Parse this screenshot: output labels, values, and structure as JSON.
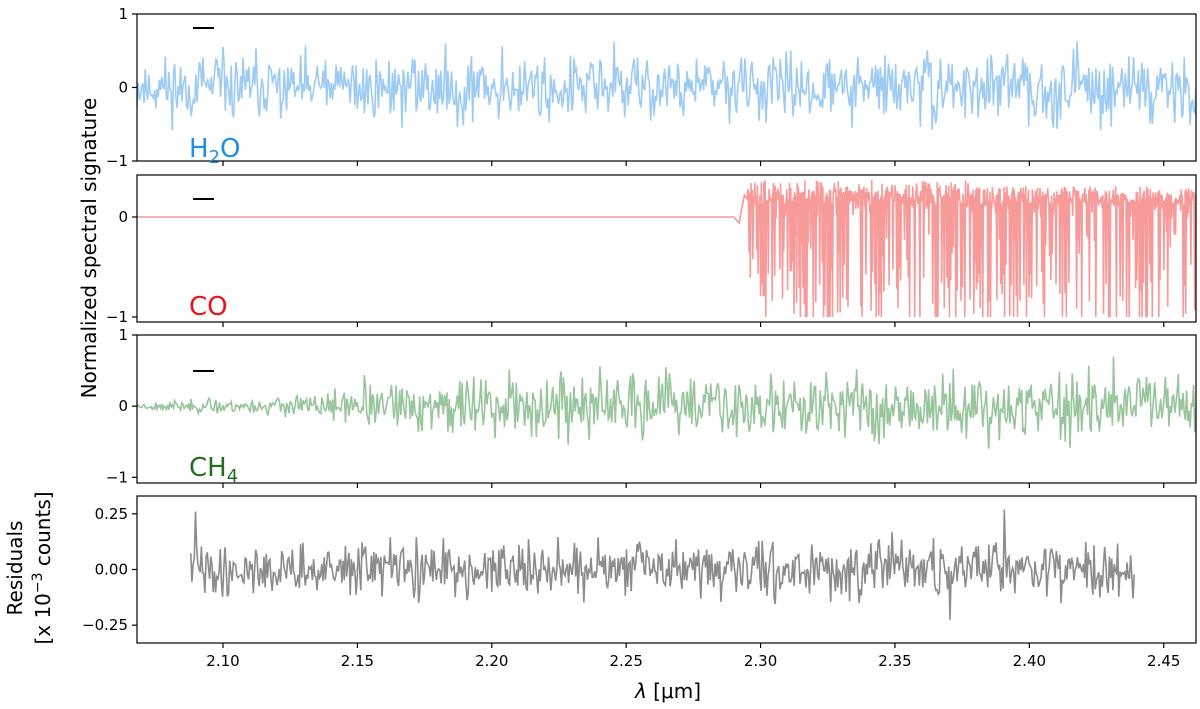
{
  "chart_data": [
    {
      "type": "line",
      "panel": "h2o",
      "label": "H2O",
      "label_main": "H",
      "label_sub": "2",
      "label_tail": "O",
      "color": "#9ecbf2",
      "label_color": "#1f8fe6",
      "xlim": [
        2.068,
        2.462
      ],
      "ylim": [
        -1,
        1
      ],
      "yticks": [
        -1,
        0,
        1
      ],
      "ytick_labels": [
        "−1",
        "0",
        "1"
      ],
      "signal": {
        "x_start": 2.068,
        "x_end": 2.462,
        "n": 900,
        "envelope": [
          [
            2.068,
            0.34
          ],
          [
            2.462,
            0.34
          ]
        ],
        "clip": [
          -1.0,
          0.62
        ],
        "seed": 11
      }
    },
    {
      "type": "line",
      "panel": "co",
      "label": "CO",
      "color": "#f69a9a",
      "label_color": "#e8141a",
      "xlim": [
        2.068,
        2.462
      ],
      "ylim": [
        -1.05,
        0.42
      ],
      "yticks": [
        -1,
        0
      ],
      "ytick_labels": [
        "−1",
        "0"
      ],
      "signal": {
        "flat_until": 2.29,
        "x_end": 2.462,
        "n": 700,
        "max": 0.37,
        "min": -1.0,
        "seed": 5
      }
    },
    {
      "type": "line",
      "panel": "ch4",
      "label": "CH4",
      "label_main": "CH",
      "label_sub": "4",
      "color": "#98c59b",
      "label_color": "#1f6f1f",
      "xlim": [
        2.068,
        2.462
      ],
      "ylim": [
        -1.08,
        1.0
      ],
      "yticks": [
        -1,
        0,
        1
      ],
      "ytick_labels": [
        "−1",
        "0",
        "1"
      ],
      "signal": {
        "x_start": 2.068,
        "x_end": 2.462,
        "n": 900,
        "envelope": [
          [
            2.068,
            0.04
          ],
          [
            2.13,
            0.12
          ],
          [
            2.19,
            0.34
          ],
          [
            2.462,
            0.36
          ]
        ],
        "clip": [
          -1.0,
          0.9
        ],
        "seed": 23
      }
    },
    {
      "type": "line",
      "panel": "residuals",
      "color": "#8c8c8c",
      "xlim": [
        2.068,
        2.462
      ],
      "ylim": [
        -0.33,
        0.33
      ],
      "yticks": [
        -0.25,
        0.0,
        0.25
      ],
      "ytick_labels": [
        "−0.25",
        "0.00",
        "0.25"
      ],
      "signal": {
        "x_start": 2.088,
        "x_end": 2.439,
        "n": 800,
        "envelope": [
          [
            2.088,
            0.09
          ],
          [
            2.439,
            0.1
          ]
        ],
        "clip": [
          -0.32,
          0.31
        ],
        "seed": 41
      }
    }
  ],
  "axes": {
    "xticks": [
      2.1,
      2.15,
      2.2,
      2.25,
      2.3,
      2.35,
      2.4,
      2.45
    ],
    "xtick_labels": [
      "2.10",
      "2.15",
      "2.20",
      "2.25",
      "2.30",
      "2.35",
      "2.40",
      "2.45"
    ],
    "xlabel_symbol": "λ",
    "xlabel_unit": " [μm]",
    "ylabel_main": "Normalized spectral signature",
    "ylabel_residuals_line1": "Residuals",
    "ylabel_residuals_line2_pre": "[x 10",
    "ylabel_residuals_line2_exp": "−3",
    "ylabel_residuals_line2_post": " counts]",
    "legend_dash": "—"
  }
}
